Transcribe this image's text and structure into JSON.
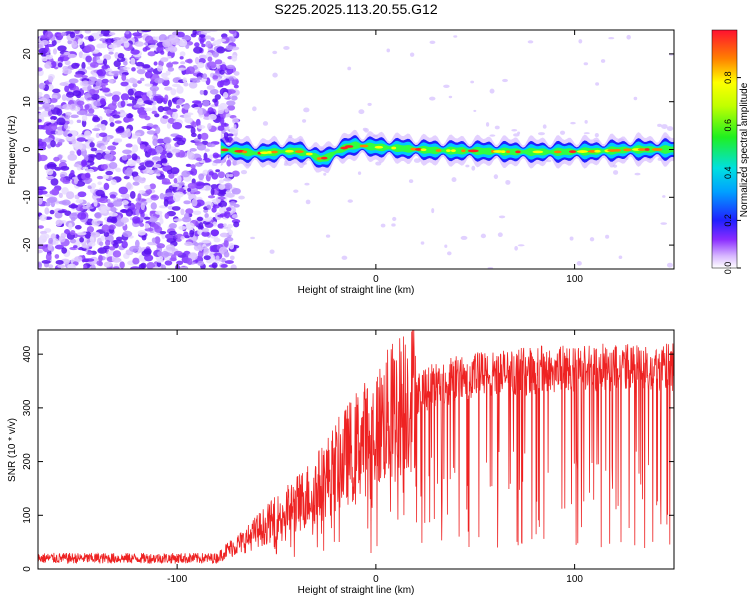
{
  "title": "S225.2025.113.20.55.G12",
  "colors": {
    "snr_line": "#ee2222",
    "axis": "#000000",
    "ridge_core": "#ff2020",
    "noise": "#7a2cff"
  },
  "chart_data": [
    {
      "type": "heatmap",
      "title": "S225.2025.113.20.55.G12",
      "xlabel": "Height of straight line (km)",
      "ylabel": "Frequency (Hz)",
      "xlim": [
        -170,
        150
      ],
      "ylim": [
        -25,
        25
      ],
      "xticks": [
        -100,
        0,
        100
      ],
      "xtick_labels": [
        "-100",
        "0",
        "100"
      ],
      "yticks": [
        -20,
        -10,
        0,
        10,
        20
      ],
      "ytick_labels": [
        "-20",
        "-10",
        "0",
        "10",
        "20"
      ],
      "colorbar": {
        "label": "Normalized spectral amplitude",
        "range": [
          0,
          1
        ],
        "ticks": [
          0.0,
          0.2,
          0.4,
          0.6,
          0.8
        ],
        "tick_labels": [
          "0.0",
          "0.2",
          "0.4",
          "0.6",
          "0.8"
        ]
      },
      "ridge": {
        "start_x": -78,
        "points": [
          [
            -78,
            0.0
          ],
          [
            -70,
            -0.3
          ],
          [
            -60,
            -0.8
          ],
          [
            -50,
            -0.5
          ],
          [
            -40,
            -0.3
          ],
          [
            -33,
            -1.0
          ],
          [
            -28,
            -2.0
          ],
          [
            -24,
            -1.6
          ],
          [
            -20,
            -0.5
          ],
          [
            -15,
            0.5
          ],
          [
            -10,
            0.9
          ],
          [
            -5,
            0.7
          ],
          [
            0,
            0.5
          ],
          [
            10,
            0.3
          ],
          [
            30,
            -0.2
          ],
          [
            50,
            -0.3
          ],
          [
            70,
            -0.5
          ],
          [
            90,
            -0.5
          ],
          [
            110,
            -0.4
          ],
          [
            130,
            0.0
          ],
          [
            150,
            0.0
          ]
        ]
      }
    },
    {
      "type": "line",
      "xlabel": "Height of straight line (km)",
      "ylabel": "SNR (10 * v/v)",
      "xlim": [
        -170,
        150
      ],
      "ylim": [
        0,
        445
      ],
      "xticks": [
        -100,
        0,
        100
      ],
      "xtick_labels": [
        "-100",
        "0",
        "100"
      ],
      "yticks": [
        0,
        100,
        200,
        300,
        400
      ],
      "ytick_labels": [
        "0",
        "100",
        "200",
        "300",
        "400"
      ],
      "trend": [
        [
          -170,
          20
        ],
        [
          -80,
          20
        ],
        [
          -75,
          35
        ],
        [
          -70,
          45
        ],
        [
          -65,
          55
        ],
        [
          -60,
          70
        ],
        [
          -50,
          95
        ],
        [
          -40,
          120
        ],
        [
          -30,
          150
        ],
        [
          -20,
          190
        ],
        [
          -10,
          230
        ],
        [
          0,
          260
        ],
        [
          10,
          300
        ],
        [
          20,
          330
        ],
        [
          30,
          345
        ],
        [
          50,
          360
        ],
        [
          80,
          370
        ],
        [
          110,
          375
        ],
        [
          150,
          375
        ]
      ],
      "samples": 1800
    }
  ]
}
